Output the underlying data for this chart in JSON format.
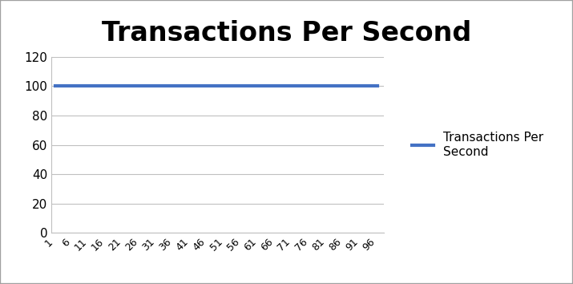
{
  "title": "Transactions Per Second",
  "title_fontsize": 24,
  "title_fontweight": "bold",
  "x_values": [
    1,
    6,
    11,
    16,
    21,
    26,
    31,
    36,
    41,
    46,
    51,
    56,
    61,
    66,
    71,
    76,
    81,
    86,
    91,
    96
  ],
  "y_values": [
    100,
    100,
    100,
    100,
    100,
    100,
    100,
    100,
    100,
    100,
    100,
    100,
    100,
    100,
    100,
    100,
    100,
    100,
    100,
    100
  ],
  "line_color": "#4472C4",
  "line_width": 3.0,
  "ylim": [
    0,
    120
  ],
  "yticks": [
    0,
    20,
    40,
    60,
    80,
    100,
    120
  ],
  "xtick_labels": [
    "1",
    "6",
    "11",
    "16",
    "21",
    "26",
    "31",
    "36",
    "41",
    "46",
    "51",
    "56",
    "61",
    "66",
    "71",
    "76",
    "81",
    "86",
    "91",
    "96"
  ],
  "legend_label": "Transactions Per\nSecond",
  "legend_fontsize": 11,
  "grid_color": "#C0C0C0",
  "background_color": "#FFFFFF",
  "tick_fontsize": 11,
  "border_color": "#A0A0A0"
}
